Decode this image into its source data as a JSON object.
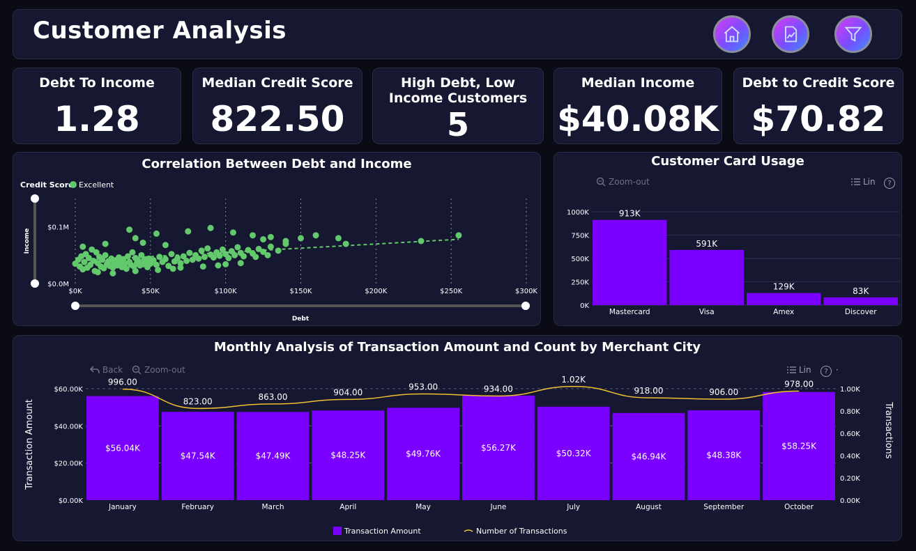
{
  "header": {
    "title": "Customer Analysis",
    "nav_icons": [
      "home-icon",
      "report-icon",
      "filter-icon"
    ]
  },
  "kpis": [
    {
      "title": "Debt To Income",
      "value": "1.28"
    },
    {
      "title": "Median Credit Score",
      "value": "822.50"
    },
    {
      "title": "High Debt, Low Income Customers",
      "value": "5"
    },
    {
      "title": "Median Income",
      "value": "$40.08K"
    },
    {
      "title": "Debt to Credit Score",
      "value": "$70.82"
    }
  ],
  "colors": {
    "accent": "#7a00ff",
    "scatter": "#63c96d",
    "line": "#f2c230",
    "panel": "#161730",
    "background": "#0b0b15"
  },
  "scatter": {
    "legend_title": "Credit Score",
    "legend_item": "Excellent"
  },
  "card_toolbar": {
    "zoom_out": "Zoom-out",
    "lin": "Lin",
    "help": "?"
  },
  "monthly_toolbar": {
    "back": "Back",
    "zoom_out": "Zoom-out",
    "lin": "Lin",
    "help": "?",
    "more": "·"
  },
  "chart_data": [
    {
      "type": "scatter",
      "title": "Correlation Between Debt and Income",
      "xlabel": "Debt",
      "ylabel": "Income",
      "xlim": [
        0,
        300000
      ],
      "ylim": [
        0,
        150000
      ],
      "x_ticks": [
        "$0K",
        "$50K",
        "$100K",
        "$150K",
        "$200K",
        "$250K",
        "$300K"
      ],
      "y_ticks": [
        "$0.0M",
        "$0.1M"
      ],
      "series": [
        {
          "name": "Excellent",
          "points": [
            [
              0,
              35000
            ],
            [
              2000,
              42000
            ],
            [
              3000,
              30000
            ],
            [
              4000,
              48000
            ],
            [
              5000,
              25000
            ],
            [
              6000,
              38000
            ],
            [
              7000,
              52000
            ],
            [
              8000,
              28000
            ],
            [
              9000,
              45000
            ],
            [
              10000,
              33000
            ],
            [
              11000,
              60000
            ],
            [
              12000,
              40000
            ],
            [
              13000,
              22000
            ],
            [
              14000,
              55000
            ],
            [
              15000,
              36000
            ],
            [
              16000,
              47000
            ],
            [
              17000,
              30000
            ],
            [
              18000,
              42000
            ],
            [
              19000,
              27000
            ],
            [
              20000,
              50000
            ],
            [
              21000,
              34000
            ],
            [
              22000,
              39000
            ],
            [
              23000,
              31000
            ],
            [
              24000,
              44000
            ],
            [
              25000,
              28000
            ],
            [
              26000,
              36000
            ],
            [
              27000,
              41000
            ],
            [
              28000,
              32000
            ],
            [
              29000,
              46000
            ],
            [
              30000,
              37000
            ],
            [
              31000,
              29000
            ],
            [
              32000,
              43000
            ],
            [
              33000,
              35000
            ],
            [
              34000,
              26000
            ],
            [
              35000,
              48000
            ],
            [
              36000,
              38000
            ],
            [
              37000,
              33000
            ],
            [
              38000,
              55000
            ],
            [
              39000,
              30000
            ],
            [
              40000,
              45000
            ],
            [
              41000,
              36000
            ],
            [
              42000,
              40000
            ],
            [
              43000,
              32000
            ],
            [
              44000,
              50000
            ],
            [
              45000,
              34000
            ],
            [
              46000,
              42000
            ],
            [
              47000,
              37000
            ],
            [
              48000,
              29000
            ],
            [
              49000,
              44000
            ],
            [
              50000,
              35000
            ],
            [
              52000,
              41000
            ],
            [
              54000,
              33000
            ],
            [
              56000,
              47000
            ],
            [
              58000,
              38000
            ],
            [
              60000,
              43000
            ],
            [
              62000,
              31000
            ],
            [
              64000,
              52000
            ],
            [
              66000,
              39000
            ],
            [
              68000,
              45000
            ],
            [
              70000,
              36000
            ],
            [
              72000,
              48000
            ],
            [
              74000,
              40000
            ],
            [
              76000,
              54000
            ],
            [
              78000,
              42000
            ],
            [
              80000,
              50000
            ],
            [
              82000,
              44000
            ],
            [
              84000,
              58000
            ],
            [
              86000,
              47000
            ],
            [
              88000,
              62000
            ],
            [
              90000,
              51000
            ],
            [
              92000,
              46000
            ],
            [
              94000,
              55000
            ],
            [
              96000,
              49000
            ],
            [
              98000,
              60000
            ],
            [
              100000,
              52000
            ],
            [
              102000,
              45000
            ],
            [
              104000,
              57000
            ],
            [
              106000,
              50000
            ],
            [
              108000,
              64000
            ],
            [
              110000,
              54000
            ],
            [
              112000,
              48000
            ],
            [
              115000,
              59000
            ],
            [
              118000,
              53000
            ],
            [
              120000,
              47000
            ],
            [
              122000,
              61000
            ],
            [
              125000,
              56000
            ],
            [
              128000,
              50000
            ],
            [
              130000,
              65000
            ],
            [
              135000,
              58000
            ],
            [
              140000,
              70000
            ],
            [
              36000,
              95000
            ],
            [
              40000,
              80000
            ],
            [
              54000,
              88000
            ],
            [
              75000,
              92000
            ],
            [
              90000,
              98000
            ],
            [
              105000,
              90000
            ],
            [
              118000,
              85000
            ],
            [
              125000,
              78000
            ],
            [
              130000,
              82000
            ],
            [
              140000,
              75000
            ],
            [
              150000,
              80000
            ],
            [
              160000,
              85000
            ],
            [
              175000,
              80000
            ],
            [
              180000,
              70000
            ],
            [
              230000,
              75000
            ],
            [
              255000,
              85000
            ],
            [
              5000,
              65000
            ],
            [
              20000,
              70000
            ],
            [
              45000,
              72000
            ],
            [
              60000,
              68000
            ],
            [
              15000,
              20000
            ],
            [
              25000,
              18000
            ],
            [
              40000,
              22000
            ],
            [
              55000,
              24000
            ],
            [
              65000,
              26000
            ],
            [
              70000,
              28000
            ],
            [
              85000,
              30000
            ],
            [
              95000,
              32000
            ],
            [
              100000,
              34000
            ],
            [
              110000,
              36000
            ]
          ]
        }
      ],
      "trendline": {
        "from": [
          0,
          40000
        ],
        "to": [
          255000,
          78000
        ],
        "style": "dashed"
      }
    },
    {
      "type": "bar",
      "title": "Customer Card Usage",
      "categories": [
        "Mastercard",
        "Visa",
        "Amex",
        "Discover"
      ],
      "values": [
        913000,
        591000,
        129000,
        83000
      ],
      "data_labels": [
        "913K",
        "591K",
        "129K",
        "83K"
      ],
      "ylim": [
        0,
        1000000
      ],
      "y_ticks": [
        "0K",
        "250K",
        "500K",
        "750K",
        "1000K"
      ],
      "grid": true
    },
    {
      "type": "bar",
      "title": "Monthly Analysis of Transaction Amount and Count by Merchant City",
      "categories": [
        "January",
        "February",
        "March",
        "April",
        "May",
        "June",
        "July",
        "August",
        "September",
        "October"
      ],
      "ylabel": "Transaction Amount",
      "y2label": "Transactions",
      "ylim": [
        0,
        60000
      ],
      "y2lim": [
        0,
        1000
      ],
      "y_ticks": [
        "$0.00K",
        "$20.00K",
        "$40.00K",
        "$60.00K"
      ],
      "y2_ticks": [
        "0.00K",
        "0.20K",
        "0.40K",
        "0.60K",
        "0.80K",
        "1.00K"
      ],
      "series": [
        {
          "name": "Transaction Amount",
          "type": "bar",
          "values": [
            56040,
            47540,
            47490,
            48250,
            49760,
            56270,
            50320,
            46940,
            48380,
            58250
          ],
          "labels": [
            "$56.04K",
            "$47.54K",
            "$47.49K",
            "$48.25K",
            "$49.76K",
            "$56.27K",
            "$50.32K",
            "$46.94K",
            "$48.38K",
            "$58.25K"
          ]
        },
        {
          "name": "Number of Transactions",
          "type": "line",
          "values": [
            996,
            823,
            863,
            904,
            953,
            934,
            1020,
            918,
            906,
            978
          ],
          "labels": [
            "996.00",
            "823.00",
            "863.00",
            "904.00",
            "953.00",
            "934.00",
            "1.02K",
            "918.00",
            "906.00",
            "978.00"
          ]
        }
      ],
      "legend": "bottom",
      "grid": true
    }
  ]
}
